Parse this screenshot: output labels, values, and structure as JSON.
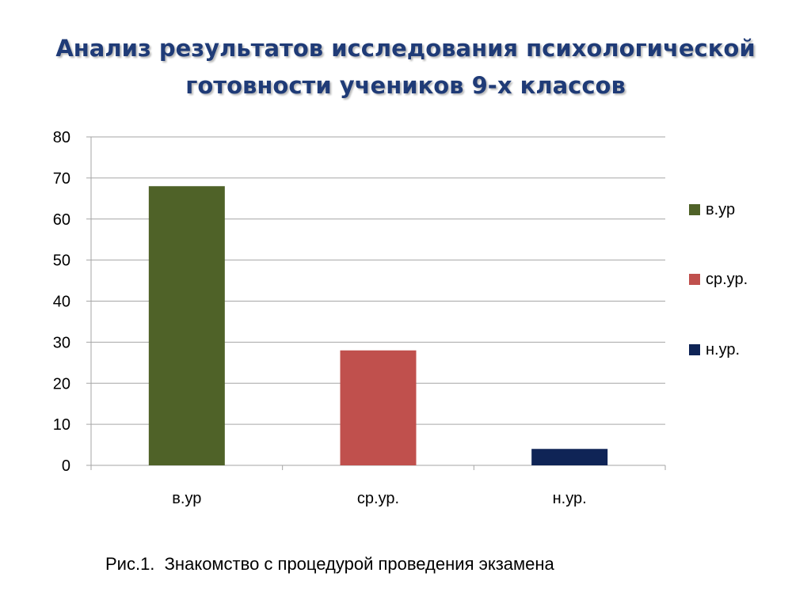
{
  "title": {
    "line1": "Анализ результатов исследования психологической",
    "line2": "готовности учеников 9-х классов"
  },
  "caption": "Рис.1.  Знакомство с процедурой проведения экзамена",
  "chart_data": {
    "type": "bar",
    "categories": [
      "в.ур",
      "ср.ур.",
      "н.ур."
    ],
    "values": [
      68,
      28,
      4
    ],
    "colors": [
      "#4f6228",
      "#c0504d",
      "#0f2456"
    ],
    "ylim": [
      0,
      80
    ],
    "yticks": [
      0,
      10,
      20,
      30,
      40,
      50,
      60,
      70,
      80
    ],
    "grid": true,
    "legend_position": "right",
    "legend": [
      "в.ур",
      "ср.ур.",
      "н.ур."
    ]
  }
}
